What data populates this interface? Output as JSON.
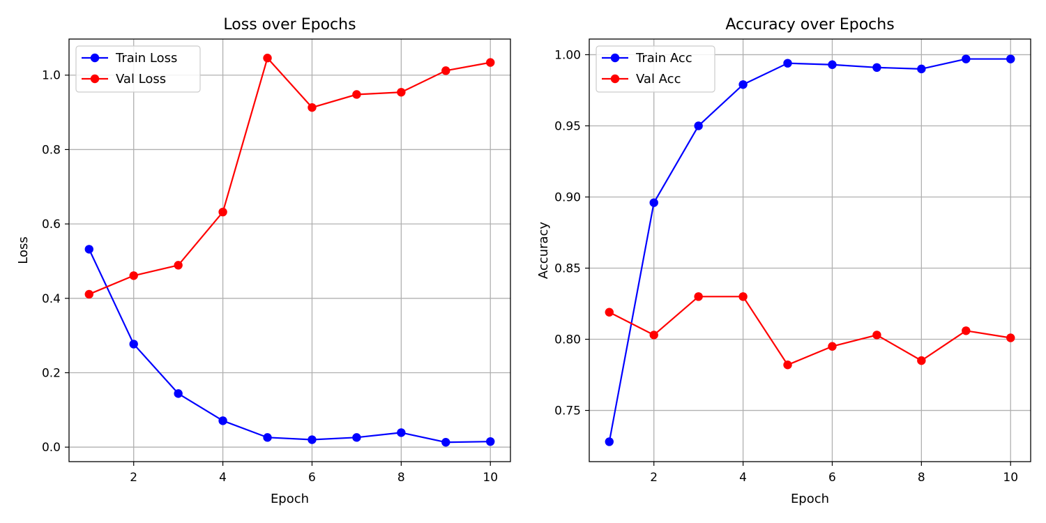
{
  "chart_data": [
    {
      "type": "line",
      "title": "Loss over Epochs",
      "xlabel": "Epoch",
      "ylabel": "Loss",
      "x": [
        1,
        2,
        3,
        4,
        5,
        6,
        7,
        8,
        9,
        10
      ],
      "xlim": [
        0.55,
        10.45
      ],
      "ylim": [
        -0.039,
        1.097
      ],
      "xticks": [
        2,
        4,
        6,
        8,
        10
      ],
      "xtick_labels": [
        "2",
        "4",
        "6",
        "8",
        "10"
      ],
      "yticks": [
        0.0,
        0.2,
        0.4,
        0.6,
        0.8,
        1.0
      ],
      "ytick_labels": [
        "0.0",
        "0.2",
        "0.4",
        "0.6",
        "0.8",
        "1.0"
      ],
      "grid": true,
      "legend": "top-left",
      "series": [
        {
          "name": "Train Loss",
          "color": "#0000ff",
          "marker": "circle",
          "values": [
            0.532,
            0.277,
            0.144,
            0.071,
            0.026,
            0.02,
            0.026,
            0.039,
            0.013,
            0.015
          ]
        },
        {
          "name": "Val Loss",
          "color": "#ff0000",
          "marker": "circle",
          "values": [
            0.411,
            0.461,
            0.489,
            0.632,
            1.046,
            0.913,
            0.948,
            0.954,
            1.012,
            1.034
          ]
        }
      ]
    },
    {
      "type": "line",
      "title": "Accuracy over Epochs",
      "xlabel": "Epoch",
      "ylabel": "Accuracy",
      "x": [
        1,
        2,
        3,
        4,
        5,
        6,
        7,
        8,
        9,
        10
      ],
      "xlim": [
        0.55,
        10.45
      ],
      "ylim": [
        0.714,
        1.011
      ],
      "xticks": [
        2,
        4,
        6,
        8,
        10
      ],
      "xtick_labels": [
        "2",
        "4",
        "6",
        "8",
        "10"
      ],
      "yticks": [
        0.75,
        0.8,
        0.85,
        0.9,
        0.95,
        1.0
      ],
      "ytick_labels": [
        "0.75",
        "0.80",
        "0.85",
        "0.90",
        "0.95",
        "1.00"
      ],
      "grid": true,
      "legend": "top-left",
      "series": [
        {
          "name": "Train Acc",
          "color": "#0000ff",
          "marker": "circle",
          "values": [
            0.728,
            0.896,
            0.95,
            0.979,
            0.994,
            0.993,
            0.991,
            0.99,
            0.997,
            0.997
          ]
        },
        {
          "name": "Val Acc",
          "color": "#ff0000",
          "marker": "circle",
          "values": [
            0.819,
            0.803,
            0.83,
            0.83,
            0.782,
            0.795,
            0.803,
            0.785,
            0.806,
            0.801
          ]
        }
      ]
    }
  ]
}
